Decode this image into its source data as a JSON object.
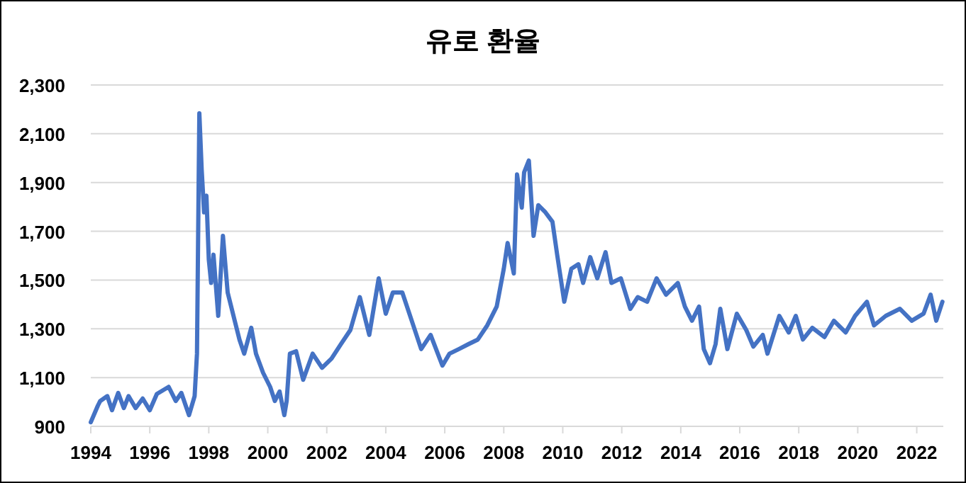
{
  "chart_data": {
    "type": "line",
    "title": "유로 환율",
    "x": [
      1994.0,
      1994.24,
      1994.32,
      1994.56,
      1994.72,
      1994.93,
      1995.12,
      1995.28,
      1995.52,
      1995.76,
      1996.0,
      1996.24,
      1996.64,
      1996.88,
      1997.07,
      1997.33,
      1997.52,
      1997.6,
      1997.68,
      1997.76,
      1997.84,
      1997.92,
      1998.0,
      1998.08,
      1998.16,
      1998.32,
      1998.48,
      1998.64,
      1998.88,
      1999.04,
      1999.2,
      1999.44,
      1999.6,
      1999.84,
      2000.08,
      2000.24,
      2000.4,
      2000.56,
      2000.64,
      2000.75,
      2000.96,
      2001.2,
      2001.52,
      2001.84,
      2002.16,
      2002.48,
      2002.8,
      2003.12,
      2003.44,
      2003.76,
      2004.0,
      2004.24,
      2004.56,
      2004.88,
      2005.2,
      2005.52,
      2005.92,
      2006.16,
      2006.48,
      2006.8,
      2007.12,
      2007.44,
      2007.76,
      2008.0,
      2008.13,
      2008.34,
      2008.45,
      2008.61,
      2008.69,
      2008.85,
      2009.01,
      2009.17,
      2009.41,
      2009.65,
      2009.81,
      2010.05,
      2010.29,
      2010.53,
      2010.69,
      2010.93,
      2011.17,
      2011.45,
      2011.65,
      2011.97,
      2012.29,
      2012.54,
      2012.86,
      2013.18,
      2013.5,
      2013.9,
      2014.14,
      2014.38,
      2014.62,
      2014.78,
      2014.99,
      2015.18,
      2015.34,
      2015.58,
      2015.9,
      2016.22,
      2016.46,
      2016.78,
      2016.94,
      2017.34,
      2017.66,
      2017.9,
      2018.14,
      2018.46,
      2018.87,
      2019.19,
      2019.59,
      2019.91,
      2020.31,
      2020.55,
      2020.95,
      2021.43,
      2021.83,
      2022.23,
      2022.47,
      2022.66,
      2022.87
    ],
    "series": [
      {
        "color": "#4472c4",
        "values": [
          917,
          985,
          1004,
          1024,
          966,
          1037,
          975,
          1024,
          975,
          1014,
          966,
          1033,
          1062,
          1004,
          1037,
          946,
          1024,
          1198,
          2184,
          1952,
          1778,
          1846,
          1585,
          1488,
          1604,
          1353,
          1681,
          1449,
          1333,
          1256,
          1198,
          1304,
          1198,
          1120,
          1062,
          1004,
          1043,
          946,
          1004,
          1198,
          1208,
          1091,
          1198,
          1140,
          1178,
          1237,
          1295,
          1430,
          1275,
          1507,
          1362,
          1449,
          1449,
          1333,
          1217,
          1275,
          1149,
          1198,
          1217,
          1237,
          1256,
          1314,
          1391,
          1546,
          1652,
          1527,
          1933,
          1797,
          1942,
          1990,
          1681,
          1807,
          1778,
          1739,
          1604,
          1411,
          1546,
          1565,
          1488,
          1594,
          1507,
          1614,
          1488,
          1507,
          1382,
          1430,
          1411,
          1507,
          1440,
          1488,
          1391,
          1333,
          1391,
          1217,
          1159,
          1237,
          1382,
          1217,
          1362,
          1295,
          1227,
          1275,
          1198,
          1353,
          1285,
          1353,
          1256,
          1304,
          1266,
          1333,
          1285,
          1353,
          1411,
          1314,
          1353,
          1382,
          1333,
          1362,
          1440,
          1333,
          1411
        ]
      }
    ],
    "xlim": [
      1994,
      2022.9
    ],
    "xticks": [
      1994,
      1996,
      1998,
      2000,
      2002,
      2004,
      2006,
      2008,
      2010,
      2012,
      2014,
      2016,
      2018,
      2020,
      2022
    ],
    "ylim": [
      900,
      2300
    ],
    "yticks": [
      {
        "value": 900,
        "label": "900"
      },
      {
        "value": 1100,
        "label": "1,100"
      },
      {
        "value": 1300,
        "label": "1,300"
      },
      {
        "value": 1500,
        "label": "1,500"
      },
      {
        "value": 1700,
        "label": "1,700"
      },
      {
        "value": 1900,
        "label": "1,900"
      },
      {
        "value": 2100,
        "label": "2,100"
      },
      {
        "value": 2300,
        "label": "2,300"
      }
    ],
    "grid": "y",
    "marker": "none",
    "line_style": "solid"
  }
}
